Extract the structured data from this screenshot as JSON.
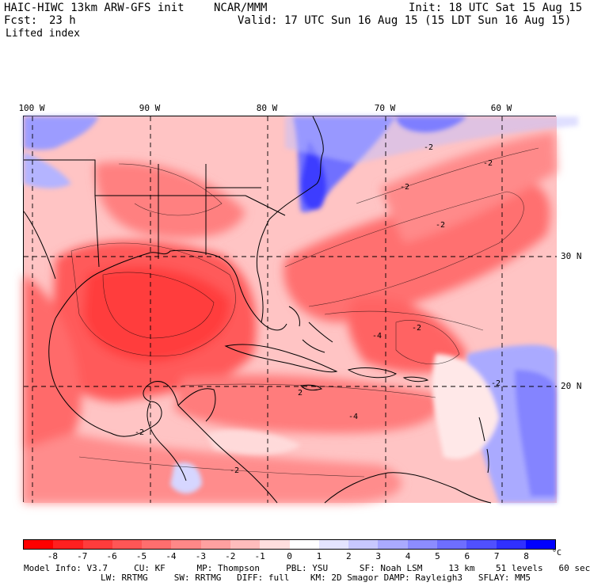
{
  "header": {
    "title": "HAIC-HIWC 13km ARW-GFS init",
    "center": "NCAR/MMM",
    "init": "Init: 18 UTC Sat 15 Aug 15",
    "fcst_label": "Fcst:",
    "fcst_value": "23 h",
    "valid": "Valid: 17 UTC Sun 16 Aug 15 (15 LDT Sun 16 Aug 15)",
    "field": "Lifted index"
  },
  "map": {
    "lon_labels": [
      "100 W",
      "90 W",
      "80 W",
      "70 W",
      "60 W"
    ],
    "lat_labels": [
      "30 N",
      "20 N"
    ],
    "contour_labels": [
      "-2",
      "-2",
      "-2",
      "-2",
      "-2",
      "-4",
      "-2",
      "2",
      "-2",
      "-4",
      "-2"
    ]
  },
  "colorbar": {
    "labels": [
      "-8",
      "-7",
      "-6",
      "-5",
      "-4",
      "-3",
      "-2",
      "-1",
      "0",
      "1",
      "2",
      "3",
      "4",
      "5",
      "6",
      "7",
      "8"
    ],
    "unit": "°C",
    "colors": [
      "#ff0000",
      "#ff2020",
      "#ff3c3c",
      "#ff5656",
      "#ff6e6e",
      "#ff8888",
      "#ffa0a0",
      "#ffbcbc",
      "#ffdede",
      "#ffffff",
      "#e4e4ff",
      "#c8c8ff",
      "#aaaaff",
      "#8c8cff",
      "#6e6eff",
      "#5050ff",
      "#3030ff",
      "#0000ff"
    ]
  },
  "footer": {
    "line1": "Model Info: V3.7     CU: KF      MP: Thompson     PBL: YSU      SF: Noah LSM     13 km    51 levels   60 sec",
    "line2": "LW: RRTMG     SW: RRTMG   DIFF: full    KM: 2D Smagor DAMP: Rayleigh3   SFLAY: MM5"
  }
}
